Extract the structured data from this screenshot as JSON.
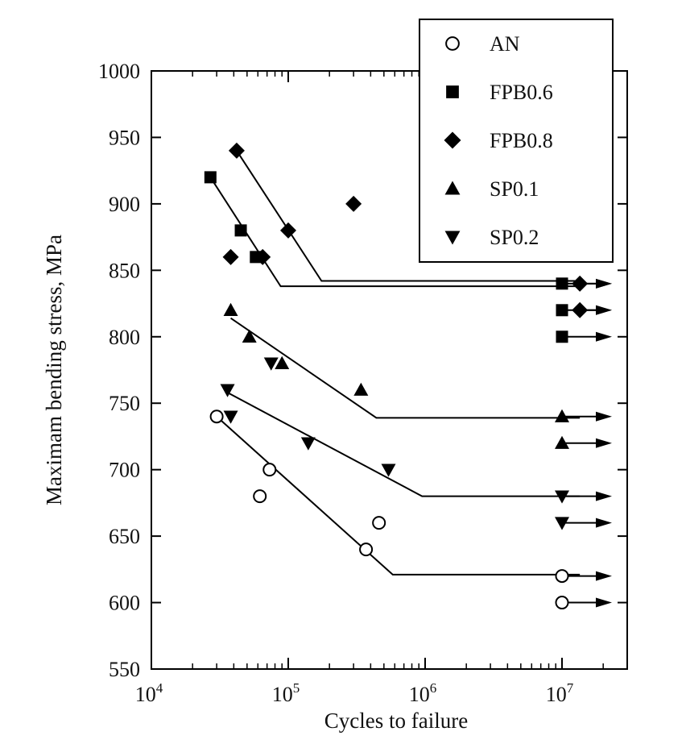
{
  "chart_data": {
    "type": "scatter",
    "xscale": "log",
    "xlim": [
      10000,
      30000000
    ],
    "ylim": [
      550,
      1000
    ],
    "yticks": [
      550,
      600,
      650,
      700,
      750,
      800,
      850,
      900,
      950,
      1000
    ],
    "xticks": [
      {
        "value": 10000,
        "base": "10",
        "exp": "4"
      },
      {
        "value": 100000,
        "base": "10",
        "exp": "5"
      },
      {
        "value": 1000000,
        "base": "10",
        "exp": "6"
      },
      {
        "value": 10000000,
        "base": "10",
        "exp": "7"
      }
    ],
    "xlabel": "Cycles to failure",
    "ylabel": "Maximam bending stress, MPa",
    "legend_position": "top-right",
    "series": [
      {
        "name": "AN",
        "marker": "circle-open",
        "points": [
          [
            30000,
            740
          ],
          [
            62000,
            680
          ],
          [
            73000,
            700
          ],
          [
            370000,
            640
          ],
          [
            460000,
            660
          ]
        ],
        "runouts": [
          [
            10000000,
            620
          ],
          [
            10000000,
            600
          ]
        ],
        "fit_line": [
          [
            30000,
            740
          ],
          [
            580000,
            621
          ],
          [
            13500000,
            621
          ]
        ]
      },
      {
        "name": "FPB0.6",
        "marker": "square",
        "points": [
          [
            27000,
            920
          ],
          [
            45000,
            880
          ],
          [
            58000,
            860
          ]
        ],
        "runouts": [
          [
            10000000,
            840
          ],
          [
            10000000,
            820
          ],
          [
            10000000,
            800
          ]
        ],
        "fit_line": [
          [
            27000,
            920
          ],
          [
            88000,
            838
          ],
          [
            13500000,
            838
          ]
        ]
      },
      {
        "name": "FPB0.8",
        "marker": "diamond",
        "points": [
          [
            42000,
            940
          ],
          [
            38000,
            860
          ],
          [
            65000,
            860
          ],
          [
            100000,
            880
          ],
          [
            300000,
            900
          ]
        ],
        "runouts": [
          [
            13500000,
            840
          ],
          [
            13500000,
            820
          ]
        ],
        "fit_line": [
          [
            42000,
            940
          ],
          [
            175000,
            842
          ],
          [
            13500000,
            842
          ]
        ]
      },
      {
        "name": "SP0.1",
        "marker": "triangle-up",
        "points": [
          [
            38000,
            820
          ],
          [
            52000,
            800
          ],
          [
            90000,
            780
          ],
          [
            340000,
            760
          ]
        ],
        "runouts": [
          [
            10000000,
            740
          ],
          [
            10000000,
            720
          ]
        ],
        "fit_line": [
          [
            38000,
            814
          ],
          [
            440000,
            739
          ],
          [
            13500000,
            739
          ]
        ]
      },
      {
        "name": "SP0.2",
        "marker": "triangle-down",
        "points": [
          [
            36000,
            760
          ],
          [
            38000,
            740
          ],
          [
            75000,
            780
          ],
          [
            140000,
            720
          ],
          [
            540000,
            700
          ]
        ],
        "runouts": [
          [
            10000000,
            680
          ],
          [
            10000000,
            660
          ]
        ],
        "fit_line": [
          [
            36000,
            758
          ],
          [
            950000,
            680
          ],
          [
            13500000,
            680
          ]
        ]
      }
    ]
  }
}
